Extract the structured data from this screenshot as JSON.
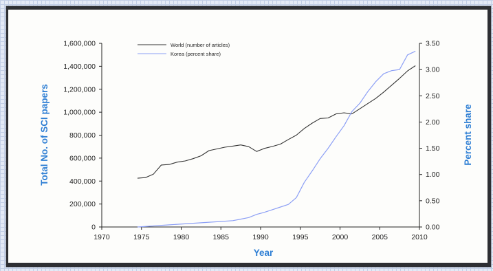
{
  "colors": {
    "world": "#333333",
    "korea": "#8c9ff5",
    "axis_title": "#2f7fd4",
    "background_grid": "#c3cfe6"
  },
  "chart_data": {
    "type": "line",
    "title": "",
    "xlabel": "Year",
    "ylabel_left": "Total No. of SCI papers",
    "ylabel_right": "Percent share",
    "xlim": [
      1970,
      2010
    ],
    "ylim_left": [
      0,
      1600000
    ],
    "ylim_right": [
      0,
      3.5
    ],
    "grid": false,
    "legend_position": "top-center",
    "x_ticks": [
      "1970",
      "1975",
      "1980",
      "1985",
      "1990",
      "1995",
      "2000",
      "2005",
      "2010"
    ],
    "y_left_ticks": [
      "0",
      "200,000",
      "400,000",
      "600,000",
      "800,000",
      "1,000,000",
      "1,200,000",
      "1,400,000",
      "1,600,000"
    ],
    "y_right_ticks": [
      "0.00",
      "0.50",
      "1.00",
      "1.50",
      "2.00",
      "2.50",
      "3.00",
      "3.50"
    ],
    "series": [
      {
        "name": "World (number of articles)",
        "axis": "left",
        "x": [
          1974.5,
          1975.5,
          1976.5,
          1977.5,
          1978.5,
          1979.5,
          1980.5,
          1981.5,
          1982.5,
          1983.5,
          1984.5,
          1985.5,
          1986.5,
          1987.5,
          1988.5,
          1989.5,
          1990.5,
          1991.5,
          1992.5,
          1993.5,
          1994.5,
          1995.5,
          1996.5,
          1997.5,
          1998.5,
          1999.5,
          2000.5,
          2001.5,
          2002.5,
          2003.5,
          2004.5,
          2005.5,
          2006.5,
          2007.5,
          2008.5,
          2009.5
        ],
        "values": [
          425000,
          430000,
          460000,
          540000,
          545000,
          565000,
          575000,
          595000,
          620000,
          665000,
          680000,
          695000,
          705000,
          715000,
          700000,
          658000,
          685000,
          702000,
          722000,
          762000,
          800000,
          858000,
          905000,
          945000,
          950000,
          985000,
          995000,
          985000,
          1030000,
          1075000,
          1120000,
          1175000,
          1235000,
          1295000,
          1360000,
          1405000
        ]
      },
      {
        "name": "Korea (percent share)",
        "axis": "right",
        "x": [
          1974.5,
          1976.5,
          1978.5,
          1980.5,
          1982.5,
          1984.5,
          1986.5,
          1987.5,
          1988.5,
          1989.5,
          1990.5,
          1991.5,
          1992.5,
          1993.5,
          1994.5,
          1995.5,
          1996.5,
          1997.5,
          1998.5,
          1999.5,
          2000.5,
          2001.5,
          2002.5,
          2003.5,
          2004.5,
          2005.5,
          2006.5,
          2007.5,
          2008.5,
          2009.5
        ],
        "values": [
          0.0,
          0.02,
          0.04,
          0.06,
          0.08,
          0.1,
          0.12,
          0.15,
          0.18,
          0.24,
          0.28,
          0.33,
          0.38,
          0.43,
          0.56,
          0.85,
          1.07,
          1.3,
          1.5,
          1.72,
          1.93,
          2.2,
          2.36,
          2.58,
          2.77,
          2.92,
          2.98,
          3.0,
          3.28,
          3.35
        ]
      }
    ]
  }
}
